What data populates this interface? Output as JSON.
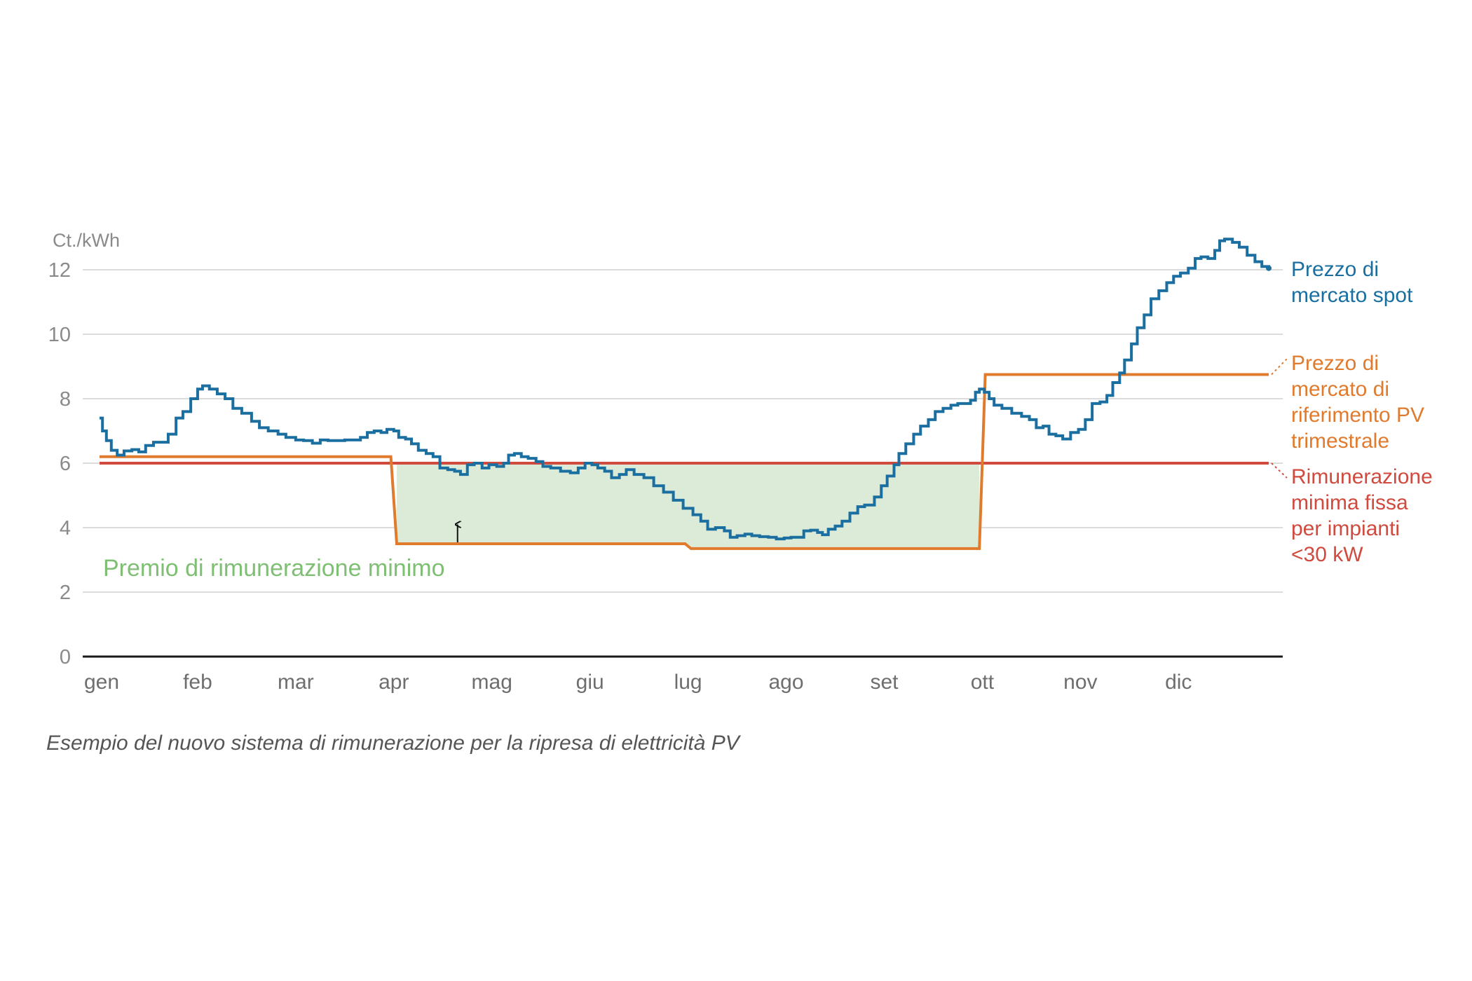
{
  "caption": "Esempio del nuovo sistema di rimunerazione per la ripresa di elettricità PV",
  "chart_data": {
    "type": "line",
    "y_unit": "Ct./kWh",
    "ylim": [
      0,
      12
    ],
    "yticks": [
      "0",
      "2",
      "4",
      "6",
      "8",
      "10",
      "12"
    ],
    "xlim": [
      0,
      12
    ],
    "x_months": [
      "gen",
      "feb",
      "mar",
      "apr",
      "mag",
      "giu",
      "lug",
      "ago",
      "set",
      "ott",
      "nov",
      "dic"
    ],
    "grid": true,
    "colors": {
      "spot": "#1a6fa0",
      "reference": "#e07b2e",
      "minimum": "#d04a3e",
      "premium_fill": "#dcebd8",
      "annotation": "#7fbf74"
    },
    "series": [
      {
        "key": "spot",
        "name_lines": [
          "Prezzo di",
          "mercato spot"
        ],
        "style": "step",
        "points": [
          [
            0.0,
            7.4
          ],
          [
            0.03,
            7.0
          ],
          [
            0.07,
            6.7
          ],
          [
            0.12,
            6.4
          ],
          [
            0.18,
            6.25
          ],
          [
            0.25,
            6.38
          ],
          [
            0.33,
            6.42
          ],
          [
            0.4,
            6.35
          ],
          [
            0.47,
            6.55
          ],
          [
            0.55,
            6.65
          ],
          [
            0.63,
            6.65
          ],
          [
            0.7,
            6.9
          ],
          [
            0.78,
            7.4
          ],
          [
            0.85,
            7.6
          ],
          [
            0.93,
            8.0
          ],
          [
            1.0,
            8.3
          ],
          [
            1.05,
            8.4
          ],
          [
            1.12,
            8.3
          ],
          [
            1.2,
            8.15
          ],
          [
            1.28,
            8.0
          ],
          [
            1.36,
            7.7
          ],
          [
            1.45,
            7.55
          ],
          [
            1.55,
            7.3
          ],
          [
            1.63,
            7.1
          ],
          [
            1.72,
            7.0
          ],
          [
            1.82,
            6.9
          ],
          [
            1.9,
            6.8
          ],
          [
            2.0,
            6.72
          ],
          [
            2.08,
            6.7
          ],
          [
            2.17,
            6.62
          ],
          [
            2.25,
            6.72
          ],
          [
            2.33,
            6.7
          ],
          [
            2.42,
            6.7
          ],
          [
            2.5,
            6.72
          ],
          [
            2.58,
            6.72
          ],
          [
            2.66,
            6.8
          ],
          [
            2.73,
            6.95
          ],
          [
            2.8,
            7.0
          ],
          [
            2.87,
            6.95
          ],
          [
            2.93,
            7.05
          ],
          [
            3.0,
            7.0
          ],
          [
            3.05,
            6.8
          ],
          [
            3.12,
            6.75
          ],
          [
            3.18,
            6.6
          ],
          [
            3.25,
            6.4
          ],
          [
            3.33,
            6.3
          ],
          [
            3.4,
            6.2
          ],
          [
            3.47,
            5.85
          ],
          [
            3.55,
            5.8
          ],
          [
            3.62,
            5.75
          ],
          [
            3.68,
            5.65
          ],
          [
            3.75,
            5.95
          ],
          [
            3.82,
            6.0
          ],
          [
            3.9,
            5.85
          ],
          [
            3.97,
            5.95
          ],
          [
            4.05,
            5.9
          ],
          [
            4.12,
            6.0
          ],
          [
            4.17,
            6.25
          ],
          [
            4.23,
            6.3
          ],
          [
            4.3,
            6.2
          ],
          [
            4.37,
            6.15
          ],
          [
            4.45,
            6.05
          ],
          [
            4.52,
            5.9
          ],
          [
            4.6,
            5.85
          ],
          [
            4.7,
            5.75
          ],
          [
            4.8,
            5.7
          ],
          [
            4.88,
            5.85
          ],
          [
            4.95,
            6.0
          ],
          [
            5.02,
            5.95
          ],
          [
            5.08,
            5.85
          ],
          [
            5.15,
            5.75
          ],
          [
            5.22,
            5.55
          ],
          [
            5.3,
            5.65
          ],
          [
            5.37,
            5.8
          ],
          [
            5.45,
            5.65
          ],
          [
            5.55,
            5.55
          ],
          [
            5.65,
            5.3
          ],
          [
            5.75,
            5.1
          ],
          [
            5.85,
            4.85
          ],
          [
            5.95,
            4.6
          ],
          [
            6.05,
            4.4
          ],
          [
            6.13,
            4.2
          ],
          [
            6.2,
            3.95
          ],
          [
            6.28,
            4.0
          ],
          [
            6.37,
            3.9
          ],
          [
            6.43,
            3.7
          ],
          [
            6.5,
            3.75
          ],
          [
            6.58,
            3.8
          ],
          [
            6.65,
            3.75
          ],
          [
            6.73,
            3.72
          ],
          [
            6.82,
            3.7
          ],
          [
            6.9,
            3.65
          ],
          [
            6.98,
            3.68
          ],
          [
            7.05,
            3.7
          ],
          [
            7.12,
            3.7
          ],
          [
            7.18,
            3.9
          ],
          [
            7.25,
            3.92
          ],
          [
            7.32,
            3.85
          ],
          [
            7.37,
            3.78
          ],
          [
            7.43,
            3.95
          ],
          [
            7.5,
            4.05
          ],
          [
            7.57,
            4.2
          ],
          [
            7.65,
            4.45
          ],
          [
            7.73,
            4.65
          ],
          [
            7.8,
            4.7
          ],
          [
            7.85,
            4.7
          ],
          [
            7.9,
            4.95
          ],
          [
            7.97,
            5.3
          ],
          [
            8.03,
            5.6
          ],
          [
            8.1,
            5.95
          ],
          [
            8.15,
            6.3
          ],
          [
            8.22,
            6.6
          ],
          [
            8.3,
            6.9
          ],
          [
            8.37,
            7.15
          ],
          [
            8.45,
            7.35
          ],
          [
            8.52,
            7.6
          ],
          [
            8.6,
            7.7
          ],
          [
            8.68,
            7.8
          ],
          [
            8.75,
            7.85
          ],
          [
            8.83,
            7.85
          ],
          [
            8.88,
            7.95
          ],
          [
            8.93,
            8.2
          ],
          [
            8.97,
            8.3
          ],
          [
            9.02,
            8.2
          ],
          [
            9.07,
            8.0
          ],
          [
            9.12,
            7.8
          ],
          [
            9.2,
            7.7
          ],
          [
            9.3,
            7.55
          ],
          [
            9.4,
            7.45
          ],
          [
            9.48,
            7.35
          ],
          [
            9.55,
            7.1
          ],
          [
            9.62,
            7.15
          ],
          [
            9.68,
            6.9
          ],
          [
            9.75,
            6.85
          ],
          [
            9.82,
            6.75
          ],
          [
            9.9,
            6.95
          ],
          [
            9.98,
            7.05
          ],
          [
            10.05,
            7.35
          ],
          [
            10.12,
            7.85
          ],
          [
            10.2,
            7.9
          ],
          [
            10.27,
            8.1
          ],
          [
            10.33,
            8.5
          ],
          [
            10.4,
            8.8
          ],
          [
            10.45,
            9.2
          ],
          [
            10.52,
            9.7
          ],
          [
            10.58,
            10.2
          ],
          [
            10.65,
            10.6
          ],
          [
            10.72,
            11.1
          ],
          [
            10.8,
            11.35
          ],
          [
            10.88,
            11.6
          ],
          [
            10.95,
            11.8
          ],
          [
            11.02,
            11.9
          ],
          [
            11.1,
            12.05
          ],
          [
            11.17,
            12.35
          ],
          [
            11.23,
            12.4
          ],
          [
            11.3,
            12.35
          ],
          [
            11.37,
            12.6
          ],
          [
            11.42,
            12.9
          ],
          [
            11.47,
            12.95
          ],
          [
            11.55,
            12.85
          ],
          [
            11.62,
            12.7
          ],
          [
            11.7,
            12.45
          ],
          [
            11.78,
            12.25
          ],
          [
            11.85,
            12.1
          ],
          [
            11.92,
            12.05
          ]
        ]
      },
      {
        "key": "reference",
        "name_lines": [
          "Prezzo di",
          "mercato di",
          "riferimento PV",
          "trimestrale"
        ],
        "style": "line",
        "points": [
          [
            0.0,
            6.2
          ],
          [
            2.97,
            6.2
          ],
          [
            3.03,
            3.5
          ],
          [
            5.97,
            3.5
          ],
          [
            6.03,
            3.35
          ],
          [
            8.97,
            3.35
          ],
          [
            9.03,
            8.75
          ],
          [
            11.92,
            8.75
          ]
        ]
      },
      {
        "key": "minimum",
        "name_lines": [
          "Rimunerazione",
          "minima fissa",
          "per impianti",
          "<30 kW"
        ],
        "style": "line",
        "points": [
          [
            0.0,
            6.0
          ],
          [
            11.92,
            6.0
          ]
        ]
      }
    ],
    "shaded_region": {
      "label": "Premio di rimunerazione minimo",
      "upper": 6.0,
      "lower": [
        [
          3.03,
          3.5
        ],
        [
          5.97,
          3.5
        ],
        [
          6.03,
          3.35
        ],
        [
          8.97,
          3.35
        ]
      ]
    },
    "arrow": {
      "x": 3.65,
      "from": 3.5,
      "to": 4.1
    }
  }
}
